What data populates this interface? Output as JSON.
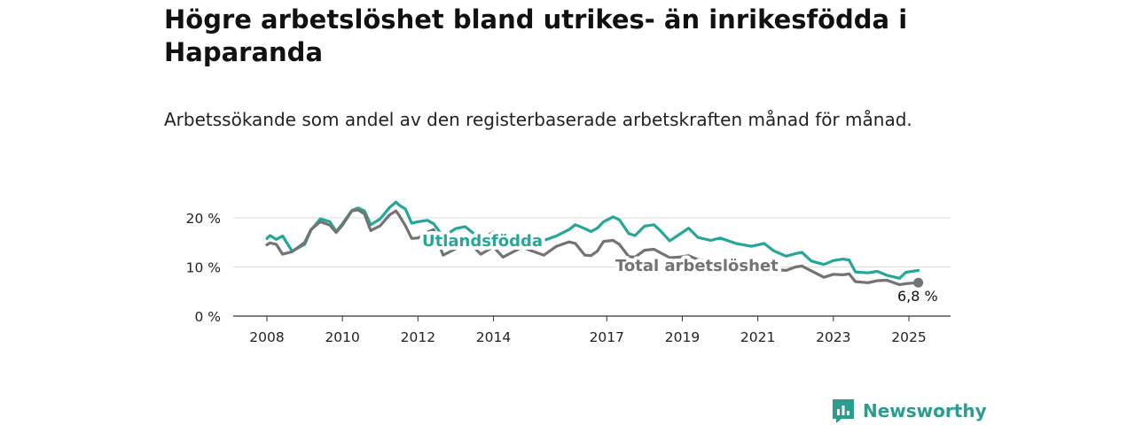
{
  "title": "Högre arbetslöshet bland utrikes- än inrikesfödda i Haparanda",
  "subtitle": "Arbetssökande som andel av den registerbaserade arbetskraften månad för månad.",
  "brand": {
    "name": "Newsworthy",
    "color": "#2a9d8f"
  },
  "chart_data": {
    "type": "line",
    "x_tick_labels": [
      "2008",
      "2010",
      "2012",
      "2014",
      "2017",
      "2019",
      "2021",
      "2023",
      "2025"
    ],
    "x_tick_values": [
      "2008-01",
      "2010-01",
      "2012-01",
      "2014-01",
      "2017-01",
      "2019-01",
      "2021-01",
      "2023-01",
      "2025-01"
    ],
    "y_tick_labels": [
      "0 %",
      "10 %",
      "20 %"
    ],
    "y_tick_values": [
      0,
      10,
      20
    ],
    "ylim": [
      0,
      20
    ],
    "x_range": [
      "2008-01",
      "2025-04"
    ],
    "grid": "horizontal",
    "series": [
      {
        "name": "Utlandsfödda",
        "color": "#26a699",
        "points": [
          [
            "2008-01",
            15.8
          ],
          [
            "2008-02",
            16.4
          ],
          [
            "2008-04",
            15.6
          ],
          [
            "2008-06",
            16.3
          ],
          [
            "2008-09",
            13.2
          ],
          [
            "2009-01",
            14.6
          ],
          [
            "2009-03",
            17.5
          ],
          [
            "2009-06",
            19.8
          ],
          [
            "2009-09",
            19.2
          ],
          [
            "2009-11",
            17.2
          ],
          [
            "2010-01",
            18.8
          ],
          [
            "2010-04",
            21.5
          ],
          [
            "2010-06",
            22.0
          ],
          [
            "2010-08",
            21.4
          ],
          [
            "2010-10",
            18.6
          ],
          [
            "2011-01",
            19.8
          ],
          [
            "2011-04",
            22.1
          ],
          [
            "2011-06",
            23.2
          ],
          [
            "2011-07",
            22.6
          ],
          [
            "2011-09",
            21.8
          ],
          [
            "2011-11",
            18.9
          ],
          [
            "2012-01",
            19.2
          ],
          [
            "2012-04",
            19.5
          ],
          [
            "2012-06",
            18.8
          ],
          [
            "2012-09",
            16.2
          ],
          [
            "2013-01",
            17.8
          ],
          [
            "2013-04",
            18.2
          ],
          [
            "2013-09",
            15.6
          ],
          [
            "2014-01",
            17.1
          ],
          [
            "2014-04",
            16.9
          ],
          [
            "2014-10",
            15.0
          ],
          [
            "2015-05",
            15.4
          ],
          [
            "2015-09",
            16.3
          ],
          [
            "2016-01",
            17.6
          ],
          [
            "2016-03",
            18.6
          ],
          [
            "2016-06",
            17.8
          ],
          [
            "2016-08",
            17.2
          ],
          [
            "2016-10",
            17.9
          ],
          [
            "2016-12",
            19.2
          ],
          [
            "2017-03",
            20.2
          ],
          [
            "2017-05",
            19.6
          ],
          [
            "2017-08",
            16.8
          ],
          [
            "2017-10",
            16.4
          ],
          [
            "2018-01",
            18.3
          ],
          [
            "2018-04",
            18.6
          ],
          [
            "2018-06",
            17.4
          ],
          [
            "2018-09",
            15.3
          ],
          [
            "2018-12",
            16.6
          ],
          [
            "2019-03",
            17.9
          ],
          [
            "2019-06",
            16.0
          ],
          [
            "2019-10",
            15.4
          ],
          [
            "2020-01",
            15.9
          ],
          [
            "2020-06",
            14.8
          ],
          [
            "2020-11",
            14.2
          ],
          [
            "2021-03",
            14.8
          ],
          [
            "2021-06",
            13.3
          ],
          [
            "2021-10",
            12.2
          ],
          [
            "2022-01",
            12.7
          ],
          [
            "2022-03",
            13.0
          ],
          [
            "2022-06",
            11.2
          ],
          [
            "2022-10",
            10.5
          ],
          [
            "2023-01",
            11.3
          ],
          [
            "2023-04",
            11.6
          ],
          [
            "2023-06",
            11.4
          ],
          [
            "2023-08",
            9.0
          ],
          [
            "2023-12",
            8.8
          ],
          [
            "2024-03",
            9.1
          ],
          [
            "2024-06",
            8.3
          ],
          [
            "2024-10",
            7.7
          ],
          [
            "2024-12",
            8.9
          ],
          [
            "2025-02",
            9.1
          ],
          [
            "2025-04",
            9.3
          ]
        ]
      },
      {
        "name": "Total arbetslöshet",
        "color": "#737373",
        "points": [
          [
            "2008-01",
            14.5
          ],
          [
            "2008-02",
            14.9
          ],
          [
            "2008-04",
            14.6
          ],
          [
            "2008-06",
            12.6
          ],
          [
            "2008-09",
            13.1
          ],
          [
            "2009-01",
            15.0
          ],
          [
            "2009-03",
            17.6
          ],
          [
            "2009-06",
            19.2
          ],
          [
            "2009-09",
            18.5
          ],
          [
            "2009-11",
            17.0
          ],
          [
            "2010-01",
            18.5
          ],
          [
            "2010-04",
            21.4
          ],
          [
            "2010-06",
            21.6
          ],
          [
            "2010-08",
            20.8
          ],
          [
            "2010-10",
            17.4
          ],
          [
            "2011-01",
            18.4
          ],
          [
            "2011-04",
            20.6
          ],
          [
            "2011-06",
            21.4
          ],
          [
            "2011-07",
            20.5
          ],
          [
            "2011-09",
            18.4
          ],
          [
            "2011-11",
            15.8
          ],
          [
            "2012-01",
            15.9
          ],
          [
            "2012-04",
            17.1
          ],
          [
            "2012-06",
            17.6
          ],
          [
            "2012-09",
            12.4
          ],
          [
            "2013-01",
            13.7
          ],
          [
            "2013-04",
            15.7
          ],
          [
            "2013-09",
            12.6
          ],
          [
            "2014-01",
            14.1
          ],
          [
            "2014-04",
            12.0
          ],
          [
            "2014-10",
            14.0
          ],
          [
            "2015-05",
            12.4
          ],
          [
            "2015-09",
            14.2
          ],
          [
            "2016-01",
            15.1
          ],
          [
            "2016-03",
            14.8
          ],
          [
            "2016-06",
            12.4
          ],
          [
            "2016-08",
            12.3
          ],
          [
            "2016-10",
            13.2
          ],
          [
            "2016-12",
            15.2
          ],
          [
            "2017-03",
            15.4
          ],
          [
            "2017-05",
            14.6
          ],
          [
            "2017-08",
            12.1
          ],
          [
            "2017-10",
            12.0
          ],
          [
            "2018-01",
            13.4
          ],
          [
            "2018-04",
            13.6
          ],
          [
            "2018-06",
            12.9
          ],
          [
            "2018-09",
            11.9
          ],
          [
            "2018-12",
            12.0
          ],
          [
            "2019-03",
            12.3
          ],
          [
            "2019-06",
            11.5
          ],
          [
            "2019-10",
            11.2
          ],
          [
            "2020-01",
            11.0
          ],
          [
            "2020-06",
            10.6
          ],
          [
            "2020-11",
            10.4
          ],
          [
            "2021-03",
            9.8
          ],
          [
            "2021-06",
            9.5
          ],
          [
            "2021-10",
            9.3
          ],
          [
            "2022-01",
            10.0
          ],
          [
            "2022-03",
            10.2
          ],
          [
            "2022-06",
            9.2
          ],
          [
            "2022-10",
            7.9
          ],
          [
            "2023-01",
            8.5
          ],
          [
            "2023-04",
            8.4
          ],
          [
            "2023-06",
            8.6
          ],
          [
            "2023-08",
            7.0
          ],
          [
            "2023-12",
            6.8
          ],
          [
            "2024-03",
            7.2
          ],
          [
            "2024-06",
            7.3
          ],
          [
            "2024-10",
            6.4
          ],
          [
            "2024-12",
            6.6
          ],
          [
            "2025-02",
            6.7
          ],
          [
            "2025-04",
            6.8
          ]
        ]
      }
    ],
    "annotations": {
      "end_value_label": "6,8 %",
      "end_value_series": "Total arbetslöshet"
    }
  }
}
